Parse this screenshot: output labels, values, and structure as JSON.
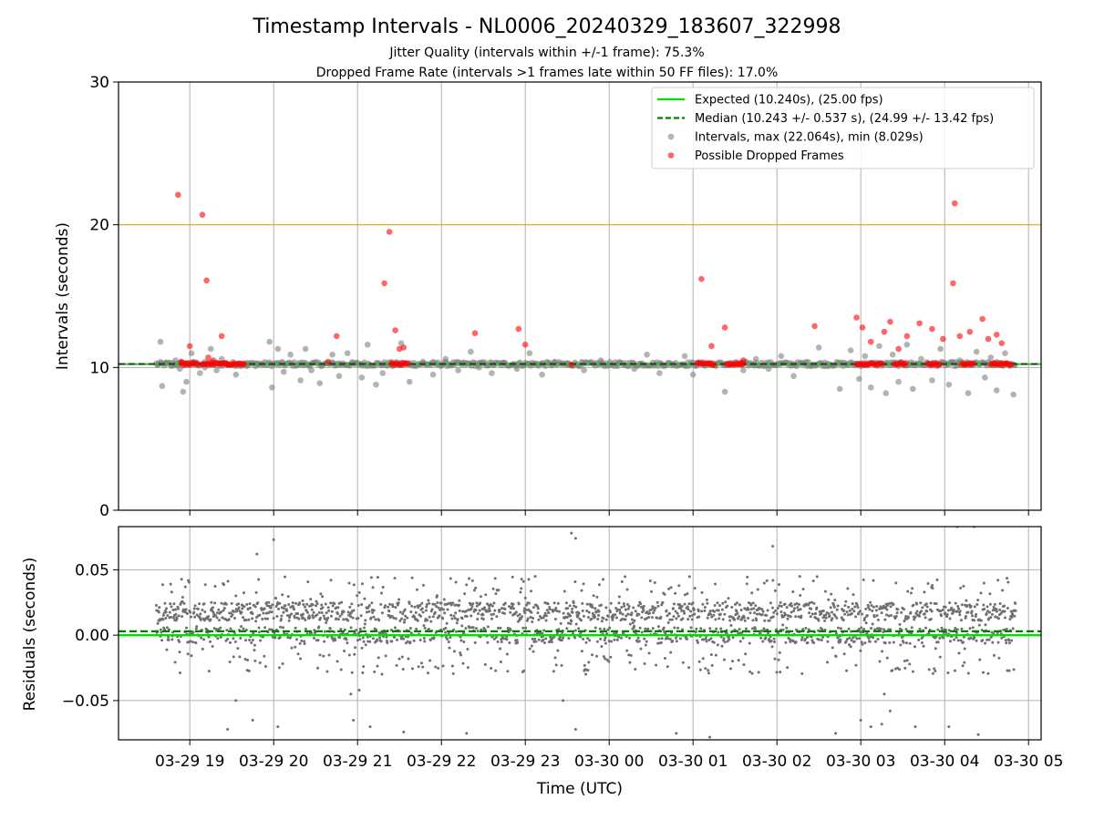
{
  "title": "Timestamp Intervals - NL0006_20240329_183607_322998",
  "subtitle_1": "Jitter Quality (intervals within +/-1 frame): 75.3%",
  "subtitle_2": "Dropped Frame Rate (intervals >1 frames late within 50 FF files): 17.0%",
  "xlabel": "Time (UTC)",
  "x_tick_labels": [
    "03-29 19",
    "03-29 20",
    "03-29 21",
    "03-29 22",
    "03-29 23",
    "03-30 00",
    "03-30 01",
    "03-30 02",
    "03-30 03",
    "03-30 04",
    "03-30 05"
  ],
  "legend": {
    "expected": "Expected (10.240s), (25.00 fps)",
    "median": "Median (10.243 +/- 0.537 s), (24.99 +/- 13.42 fps)",
    "intervals": "Intervals, max (22.064s), min (8.029s)",
    "dropped": "Possible Dropped Frames"
  },
  "colors": {
    "expected": "#00e000",
    "median": "#008000",
    "threshold": "#ffa500",
    "intervals": "#808080",
    "dropped": "#ff0000"
  },
  "chart_data": [
    {
      "type": "scatter",
      "panel": "intervals",
      "ylabel": "Intervals (seconds)",
      "ylim": [
        0,
        30
      ],
      "yticks": [
        "0",
        "10",
        "20",
        "30"
      ],
      "xlim_hours": [
        18.15,
        29.15
      ],
      "grid": true,
      "legend_position": "top-right",
      "reference_lines": {
        "expected": 10.24,
        "median": 10.243,
        "threshold": 20.0
      },
      "series": [
        {
          "name": "Intervals, max (22.064s), min (8.029s)",
          "points": [
            [
              18.62,
              10.2
            ],
            [
              18.65,
              11.8
            ],
            [
              18.67,
              8.7
            ],
            [
              18.72,
              10.3
            ],
            [
              18.78,
              10.1
            ],
            [
              18.83,
              10.5
            ],
            [
              18.88,
              9.9
            ],
            [
              18.92,
              8.3
            ],
            [
              18.96,
              9.0
            ],
            [
              19.02,
              11.0
            ],
            [
              19.05,
              10.4
            ],
            [
              19.12,
              9.6
            ],
            [
              19.18,
              10.0
            ],
            [
              19.25,
              11.3
            ],
            [
              19.32,
              9.8
            ],
            [
              19.38,
              10.6
            ],
            [
              19.48,
              10.2
            ],
            [
              19.55,
              9.5
            ],
            [
              19.68,
              10.1
            ],
            [
              19.8,
              10.3
            ],
            [
              19.95,
              11.8
            ],
            [
              19.98,
              8.6
            ],
            [
              20.05,
              11.3
            ],
            [
              20.12,
              9.7
            ],
            [
              20.2,
              10.9
            ],
            [
              20.32,
              9.1
            ],
            [
              20.38,
              11.3
            ],
            [
              20.45,
              9.8
            ],
            [
              20.55,
              8.9
            ],
            [
              20.7,
              10.9
            ],
            [
              20.78,
              9.4
            ],
            [
              20.88,
              11.0
            ],
            [
              20.95,
              10.3
            ],
            [
              21.05,
              9.3
            ],
            [
              21.12,
              11.6
            ],
            [
              21.22,
              8.8
            ],
            [
              21.3,
              9.6
            ],
            [
              21.42,
              10.1
            ],
            [
              21.52,
              11.7
            ],
            [
              21.62,
              9.0
            ],
            [
              21.78,
              10.4
            ],
            [
              21.9,
              9.5
            ],
            [
              22.05,
              10.6
            ],
            [
              22.2,
              9.8
            ],
            [
              22.35,
              11.1
            ],
            [
              22.45,
              10.0
            ],
            [
              22.6,
              9.6
            ],
            [
              22.75,
              10.3
            ],
            [
              22.9,
              9.9
            ],
            [
              23.05,
              11.0
            ],
            [
              23.2,
              9.5
            ],
            [
              23.35,
              10.4
            ],
            [
              23.5,
              10.2
            ],
            [
              23.7,
              9.8
            ],
            [
              23.9,
              10.5
            ],
            [
              24.1,
              10.1
            ],
            [
              24.3,
              9.9
            ],
            [
              24.45,
              10.9
            ],
            [
              24.6,
              9.6
            ],
            [
              24.9,
              10.8
            ],
            [
              25.0,
              9.5
            ],
            [
              25.2,
              10.2
            ],
            [
              25.38,
              8.3
            ],
            [
              25.6,
              9.8
            ],
            [
              25.75,
              10.6
            ],
            [
              25.9,
              9.9
            ],
            [
              26.05,
              10.8
            ],
            [
              26.2,
              9.4
            ],
            [
              26.35,
              10.4
            ],
            [
              26.5,
              11.4
            ],
            [
              26.62,
              10.2
            ],
            [
              26.75,
              8.5
            ],
            [
              26.88,
              11.2
            ],
            [
              26.98,
              9.2
            ],
            [
              27.05,
              10.8
            ],
            [
              27.12,
              8.6
            ],
            [
              27.22,
              11.5
            ],
            [
              27.3,
              8.2
            ],
            [
              27.38,
              10.9
            ],
            [
              27.45,
              9.0
            ],
            [
              27.55,
              11.6
            ],
            [
              27.62,
              8.5
            ],
            [
              27.72,
              10.6
            ],
            [
              27.85,
              9.1
            ],
            [
              27.95,
              11.3
            ],
            [
              28.05,
              8.8
            ],
            [
              28.18,
              10.5
            ],
            [
              28.28,
              8.2
            ],
            [
              28.38,
              11.1
            ],
            [
              28.48,
              9.3
            ],
            [
              28.55,
              10.7
            ],
            [
              28.62,
              8.4
            ],
            [
              28.72,
              11.0
            ],
            [
              28.82,
              8.1
            ]
          ]
        },
        {
          "name": "Possible Dropped Frames",
          "points": [
            [
              18.86,
              22.1
            ],
            [
              19.15,
              20.7
            ],
            [
              19.2,
              16.1
            ],
            [
              19.38,
              12.2
            ],
            [
              20.75,
              12.2
            ],
            [
              21.32,
              15.9
            ],
            [
              21.38,
              19.5
            ],
            [
              21.45,
              12.6
            ],
            [
              21.5,
              11.3
            ],
            [
              21.55,
              11.4
            ],
            [
              22.4,
              12.4
            ],
            [
              22.92,
              12.7
            ],
            [
              23.0,
              11.6
            ],
            [
              25.1,
              16.2
            ],
            [
              25.22,
              11.5
            ],
            [
              25.38,
              12.8
            ],
            [
              25.6,
              10.5
            ],
            [
              26.45,
              12.9
            ],
            [
              26.95,
              13.5
            ],
            [
              27.02,
              12.8
            ],
            [
              27.12,
              11.8
            ],
            [
              27.28,
              12.5
            ],
            [
              27.35,
              13.2
            ],
            [
              27.45,
              11.3
            ],
            [
              27.55,
              12.2
            ],
            [
              27.7,
              13.1
            ],
            [
              27.85,
              12.7
            ],
            [
              27.98,
              12.0
            ],
            [
              28.1,
              15.9
            ],
            [
              28.12,
              21.5
            ],
            [
              28.18,
              12.2
            ],
            [
              28.3,
              12.5
            ],
            [
              28.45,
              13.4
            ],
            [
              28.52,
              12.0
            ],
            [
              28.62,
              12.3
            ],
            [
              28.68,
              11.7
            ],
            [
              19.0,
              11.5
            ],
            [
              19.22,
              10.7
            ],
            [
              18.9,
              10.4
            ],
            [
              19.28,
              10.5
            ],
            [
              20.65,
              10.4
            ],
            [
              23.55,
              10.2
            ]
          ],
          "clusters": [
            [
              18.9,
              19.1
            ],
            [
              19.15,
              19.45
            ],
            [
              19.45,
              19.65
            ],
            [
              21.4,
              21.6
            ],
            [
              25.05,
              25.25
            ],
            [
              25.4,
              25.6
            ],
            [
              26.95,
              27.25
            ],
            [
              27.4,
              27.55
            ],
            [
              27.8,
              27.95
            ],
            [
              28.2,
              28.35
            ],
            [
              28.55,
              28.8
            ]
          ],
          "cluster_value": 10.25
        }
      ]
    },
    {
      "type": "scatter",
      "panel": "residuals",
      "ylabel": "Residuals (seconds)",
      "ylim": [
        -0.08,
        0.083
      ],
      "yticks": [
        "−0.05",
        "0.00",
        "0.05"
      ],
      "xlim_hours": [
        18.15,
        29.15
      ],
      "grid": true,
      "reference_lines": {
        "expected": 0.0,
        "median": 0.003
      },
      "series": [
        {
          "name": "residuals",
          "range_hours": [
            18.6,
            28.85
          ],
          "typical_band": [
            -0.03,
            0.045
          ],
          "outliers": [
            [
              20.0,
              0.073
            ],
            [
              19.8,
              0.062
            ],
            [
              23.55,
              0.078
            ],
            [
              23.6,
              0.074
            ],
            [
              28.15,
              0.083
            ],
            [
              28.35,
              0.083
            ],
            [
              25.95,
              0.068
            ],
            [
              19.55,
              -0.05
            ],
            [
              20.92,
              -0.045
            ],
            [
              21.02,
              -0.042
            ],
            [
              20.95,
              -0.065
            ],
            [
              21.15,
              -0.07
            ],
            [
              23.45,
              -0.05
            ],
            [
              26.7,
              -0.075
            ],
            [
              27.0,
              -0.065
            ],
            [
              27.12,
              -0.07
            ],
            [
              27.25,
              -0.068
            ],
            [
              27.28,
              -0.045
            ],
            [
              27.35,
              -0.058
            ],
            [
              27.65,
              -0.07
            ],
            [
              28.05,
              -0.07
            ],
            [
              19.75,
              -0.065
            ],
            [
              19.45,
              -0.072
            ],
            [
              20.05,
              -0.07
            ],
            [
              21.55,
              -0.074
            ],
            [
              22.3,
              -0.075
            ],
            [
              23.6,
              -0.072
            ],
            [
              24.8,
              -0.075
            ],
            [
              25.2,
              -0.078
            ],
            [
              28.4,
              -0.076
            ]
          ]
        }
      ]
    }
  ]
}
